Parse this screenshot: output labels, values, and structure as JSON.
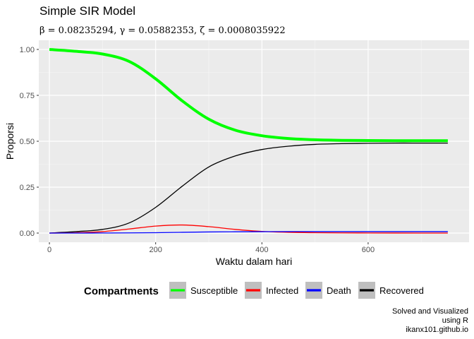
{
  "chart_data": {
    "type": "line",
    "title": "Simple SIR Model",
    "subtitle": "β = 0.08235294,  γ = 0.05882353,  ζ = 0.0008035922",
    "xlabel": "Waktu dalam hari",
    "ylabel": "Proporsi",
    "xlim": [
      -20,
      790
    ],
    "ylim": [
      -0.05,
      1.05
    ],
    "xticks": [
      0,
      200,
      400,
      600
    ],
    "yticks": [
      0.0,
      0.25,
      0.5,
      0.75,
      1.0
    ],
    "ytick_labels": [
      "0.00",
      "0.25",
      "0.50",
      "0.75",
      "1.00"
    ],
    "grid": true,
    "legend": {
      "title": "Compartments",
      "position": "bottom"
    },
    "caption": [
      "Solved and Visualized",
      "using R",
      "ikanx101.github.io"
    ],
    "x": [
      0,
      50,
      100,
      150,
      200,
      250,
      300,
      350,
      400,
      450,
      500,
      550,
      600,
      650,
      700,
      750
    ],
    "series": [
      {
        "name": "Susceptible",
        "color": "#00ff00",
        "width": 4,
        "values": [
          1.0,
          0.99,
          0.975,
          0.935,
          0.84,
          0.72,
          0.62,
          0.56,
          0.53,
          0.515,
          0.508,
          0.505,
          0.504,
          0.503,
          0.503,
          0.503
        ]
      },
      {
        "name": "Infected",
        "color": "#ff0000",
        "width": 1.3,
        "values": [
          0.0,
          0.002,
          0.008,
          0.022,
          0.038,
          0.044,
          0.035,
          0.02,
          0.009,
          0.004,
          0.002,
          0.001,
          0.0005,
          0.0002,
          0.0001,
          0.0
        ]
      },
      {
        "name": "Death",
        "color": "#0000ff",
        "width": 1.3,
        "values": [
          0.0,
          0.0,
          0.0005,
          0.001,
          0.002,
          0.004,
          0.006,
          0.007,
          0.0075,
          0.008,
          0.008,
          0.008,
          0.008,
          0.008,
          0.008,
          0.008
        ]
      },
      {
        "name": "Recovered",
        "color": "#000000",
        "width": 1.3,
        "values": [
          0.0,
          0.008,
          0.02,
          0.055,
          0.14,
          0.255,
          0.36,
          0.42,
          0.455,
          0.473,
          0.483,
          0.487,
          0.489,
          0.49,
          0.49,
          0.49
        ]
      }
    ]
  }
}
